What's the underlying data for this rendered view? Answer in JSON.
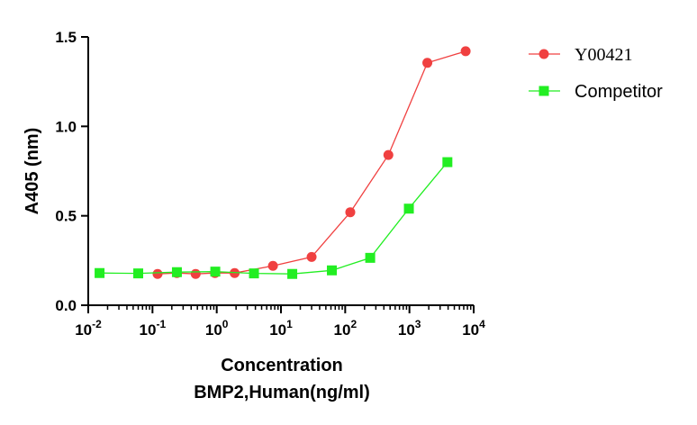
{
  "chart_data": {
    "type": "line",
    "xscale": "log",
    "xlabel": [
      "Concentration",
      "BMP2,Human(ng/ml)"
    ],
    "ylabel": "A405 (nm)",
    "xlim": [
      0.01,
      10000
    ],
    "ylim": [
      0,
      1.5
    ],
    "yticks": [
      "0.0",
      "0.5",
      "1.0",
      "1.5"
    ],
    "xticks": [
      {
        "value": 0.01,
        "base": "10",
        "exp": "-2"
      },
      {
        "value": 0.1,
        "base": "10",
        "exp": "-1"
      },
      {
        "value": 1,
        "base": "10",
        "exp": "0"
      },
      {
        "value": 10,
        "base": "10",
        "exp": "1"
      },
      {
        "value": 100,
        "base": "10",
        "exp": "2"
      },
      {
        "value": 1000,
        "base": "10",
        "exp": "3"
      },
      {
        "value": 10000,
        "base": "10",
        "exp": "4"
      }
    ],
    "grid": false,
    "legend_position": "top-right",
    "series": [
      {
        "name": "Y00421",
        "color": "#f04040",
        "marker": "circle",
        "x": [
          0.12,
          0.24,
          0.47,
          0.94,
          1.9,
          7.5,
          30,
          120,
          470,
          1900,
          7500
        ],
        "y": [
          0.175,
          0.18,
          0.175,
          0.18,
          0.18,
          0.22,
          0.27,
          0.52,
          0.84,
          1.355,
          1.42
        ]
      },
      {
        "name": "Competitor",
        "color": "#22ee22",
        "marker": "square",
        "x": [
          0.015,
          0.06,
          0.24,
          0.95,
          3.8,
          15,
          62,
          245,
          980,
          3900
        ],
        "y": [
          0.18,
          0.178,
          0.185,
          0.188,
          0.178,
          0.175,
          0.195,
          0.265,
          0.54,
          0.8
        ]
      }
    ]
  }
}
